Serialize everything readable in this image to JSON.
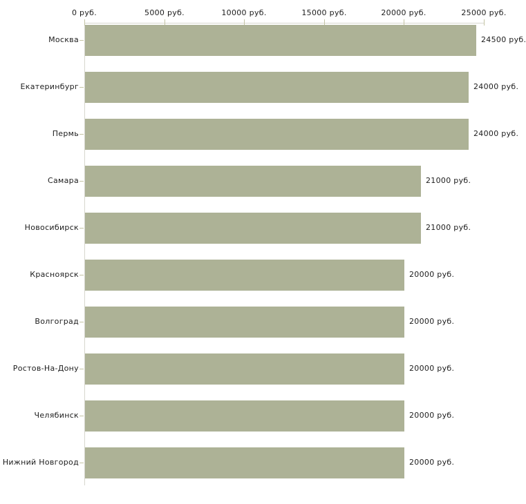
{
  "chart_data": {
    "type": "bar",
    "orientation": "horizontal",
    "title": "",
    "categories": [
      "Москва",
      "Екатеринбург",
      "Пермь",
      "Самара",
      "Новосибирск",
      "Красноярск",
      "Волгоград",
      "Ростов-На-Дону",
      "Челябинск",
      "Нижний Новгород"
    ],
    "values": [
      24500,
      24000,
      24000,
      21000,
      21000,
      20000,
      20000,
      20000,
      20000,
      20000
    ],
    "value_labels": [
      "24500 руб.",
      "24000 руб.",
      "24000 руб.",
      "21000 руб.",
      "21000 руб.",
      "20000 руб.",
      "20000 руб.",
      "20000 руб.",
      "20000 руб.",
      "20000 руб."
    ],
    "x_axis": {
      "position": "top",
      "tick_values": [
        0,
        5000,
        10000,
        15000,
        20000,
        25000
      ],
      "tick_labels": [
        "0 руб.",
        "5000 руб.",
        "10000 руб.",
        "15000 руб.",
        "20000 руб.",
        "25000 руб."
      ],
      "xlim": [
        0,
        25000
      ]
    },
    "grid": false,
    "legend": false,
    "colors": {
      "bar": "#adb296",
      "axis_line": "#d6d6ce",
      "tick": "#c4c4a4",
      "text": "#1c1c1c",
      "background": "#ffffff"
    }
  }
}
